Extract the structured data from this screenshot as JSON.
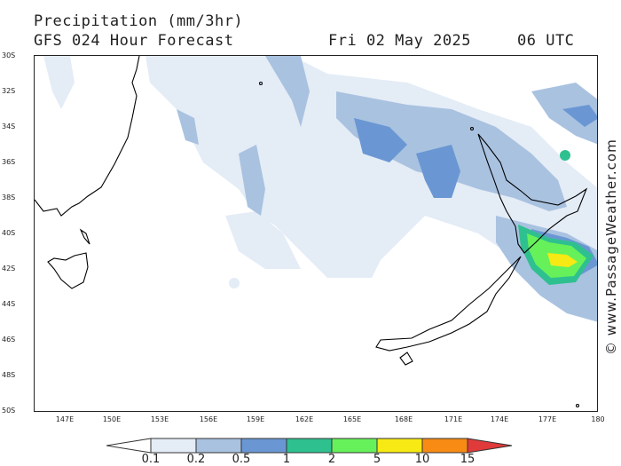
{
  "header": {
    "title": "Precipitation (mm/3hr)",
    "model": "GFS 024 Hour Forecast",
    "date": "Fri 02 May 2025",
    "time": "06 UTC"
  },
  "axes": {
    "lat_ticks": [
      "30S",
      "32S",
      "34S",
      "36S",
      "38S",
      "40S",
      "42S",
      "44S",
      "46S",
      "48S",
      "50S"
    ],
    "lon_ticks": [
      "147E",
      "150E",
      "153E",
      "156E",
      "159E",
      "162E",
      "165E",
      "168E",
      "171E",
      "174E",
      "177E",
      "180"
    ]
  },
  "legend": {
    "values": [
      "0.1",
      "0.2",
      "0.5",
      "1",
      "2",
      "5",
      "10",
      "15"
    ],
    "colors": [
      "#e4ecf6",
      "#a9c2e0",
      "#6a97d3",
      "#2fc08f",
      "#66f15a",
      "#f7e914",
      "#f88b14",
      "#e03a3a"
    ]
  },
  "watermark": "© www.PassageWeather.com",
  "chart_data": {
    "type": "heatmap",
    "title": "Precipitation (mm/3hr)",
    "xlim": [
      "144E",
      "180"
    ],
    "ylim": [
      "50S",
      "30S"
    ],
    "levels": [
      0.1,
      0.2,
      0.5,
      1,
      2,
      5,
      10,
      15
    ],
    "x": [
      "147E",
      "150E",
      "153E",
      "156E",
      "159E",
      "162E",
      "165E",
      "168E",
      "171E",
      "174E",
      "177E",
      "180"
    ],
    "y": [
      "30S",
      "32S",
      "34S",
      "36S",
      "38S",
      "40S",
      "42S",
      "44S",
      "46S",
      "48S",
      "50S"
    ]
  }
}
